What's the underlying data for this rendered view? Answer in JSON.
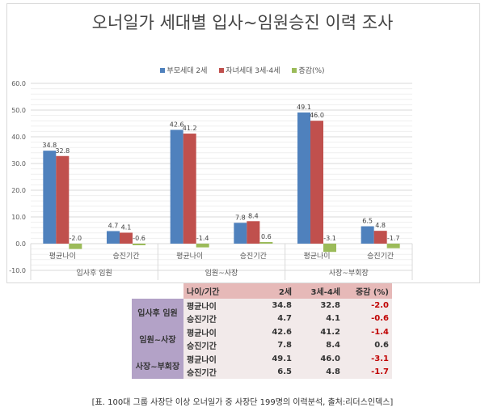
{
  "chart_data": {
    "type": "bar",
    "title": "오너일가 세대별 입사~임원승진 이력 조사",
    "groups": [
      "입사후 임원",
      "임원~사장",
      "사장~부회장"
    ],
    "categories": [
      "평균나이",
      "승진기간",
      "평균나이",
      "승진기간",
      "평균나이",
      "승진기간"
    ],
    "series": [
      {
        "name": "부모세대 2세",
        "color": "#4f81bd",
        "values": [
          34.8,
          4.7,
          42.6,
          7.8,
          49.1,
          6.5
        ]
      },
      {
        "name": "자녀세대 3세-4세",
        "color": "#c0504d",
        "values": [
          32.8,
          4.1,
          41.2,
          8.4,
          46.0,
          4.8
        ]
      },
      {
        "name": "증감(%)",
        "color": "#9bbb59",
        "values": [
          -2.0,
          -0.6,
          -1.4,
          0.6,
          -3.1,
          -1.7
        ]
      }
    ],
    "ylim": [
      -10,
      60
    ],
    "yticks": [
      "-10.0",
      "0.0",
      "10.0",
      "20.0",
      "30.0",
      "40.0",
      "50.0",
      "60.0"
    ],
    "grid": true,
    "legend": "top"
  },
  "table": {
    "headers": [
      "",
      "나이/기간",
      "2세",
      "3세-4세",
      "증감 (%)"
    ],
    "groups": [
      {
        "label": "입사후 임원",
        "rows": [
          [
            "평균나이",
            "34.8",
            "32.8",
            "-2.0"
          ],
          [
            "승진기간",
            "4.7",
            "4.1",
            "-0.6"
          ]
        ]
      },
      {
        "label": "임원~사장",
        "rows": [
          [
            "평균나이",
            "42.6",
            "41.2",
            "-1.4"
          ],
          [
            "승진기간",
            "7.8",
            "8.4",
            "0.6"
          ]
        ]
      },
      {
        "label": "사장~부회장",
        "rows": [
          [
            "평균나이",
            "49.1",
            "46.0",
            "-3.1"
          ],
          [
            "승진기간",
            "6.5",
            "4.8",
            "-1.7"
          ]
        ]
      }
    ]
  },
  "caption": "[표. 100대 그룹 사장단 이상 오너일가 중 사장단 199명의 이력분석, 출처:리더스인덱스]"
}
